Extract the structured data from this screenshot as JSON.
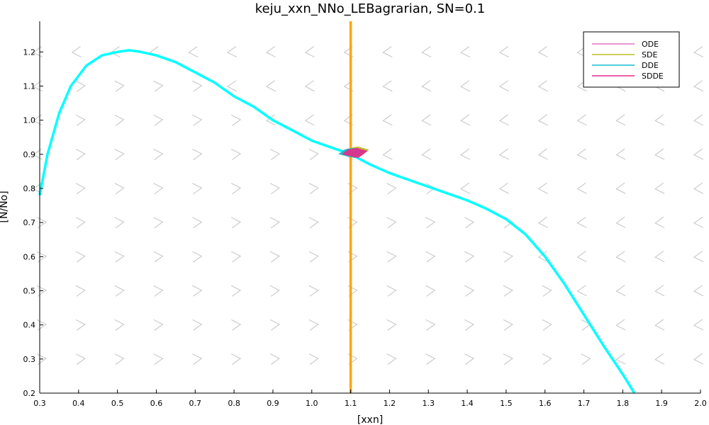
{
  "chart_data": {
    "type": "line",
    "title": "keju_xxn_NNo_LEBagrarian, SN=0.1",
    "xlabel": "[xxn]",
    "ylabel": "[N/No]",
    "xlim": [
      0.3,
      2.0
    ],
    "ylim": [
      0.2,
      1.29
    ],
    "xticks": [
      0.3,
      0.4,
      0.5,
      0.6,
      0.7,
      0.8,
      0.9,
      1.0,
      1.1,
      1.2,
      1.3,
      1.4,
      1.5,
      1.6,
      1.7,
      1.8,
      1.9,
      2.0
    ],
    "yticks": [
      0.2,
      0.3,
      0.4,
      0.5,
      0.6,
      0.7,
      0.8,
      0.9,
      1.0,
      1.1,
      1.2
    ],
    "grid": false,
    "legend_position": "top-right",
    "nullcline": {
      "color": "#00ffff",
      "x": [
        0.3,
        0.32,
        0.35,
        0.38,
        0.42,
        0.46,
        0.5,
        0.53,
        0.56,
        0.6,
        0.65,
        0.7,
        0.75,
        0.8,
        0.85,
        0.9,
        0.95,
        1.0,
        1.05,
        1.1,
        1.15,
        1.2,
        1.25,
        1.3,
        1.35,
        1.4,
        1.45,
        1.5,
        1.55,
        1.6,
        1.65,
        1.7,
        1.75,
        1.8,
        1.83
      ],
      "y": [
        0.78,
        0.9,
        1.02,
        1.1,
        1.16,
        1.19,
        1.2,
        1.205,
        1.2,
        1.19,
        1.17,
        1.14,
        1.11,
        1.07,
        1.04,
        1.0,
        0.97,
        0.94,
        0.92,
        0.9,
        0.87,
        0.845,
        0.825,
        0.805,
        0.785,
        0.765,
        0.74,
        0.71,
        0.665,
        0.6,
        0.52,
        0.43,
        0.34,
        0.255,
        0.2
      ]
    },
    "vertical_line": {
      "x": 1.1,
      "color": "#ffa500"
    },
    "equilibrium": {
      "x": 1.105,
      "y": 0.905
    },
    "series": [
      {
        "name": "ODE",
        "color": "#e377c2"
      },
      {
        "name": "SDE",
        "color": "#bcbd22"
      },
      {
        "name": "DDE",
        "color": "#17becf"
      },
      {
        "name": "SDDE",
        "color": "#e7298a"
      }
    ],
    "arrow_color": "#cccccc"
  }
}
